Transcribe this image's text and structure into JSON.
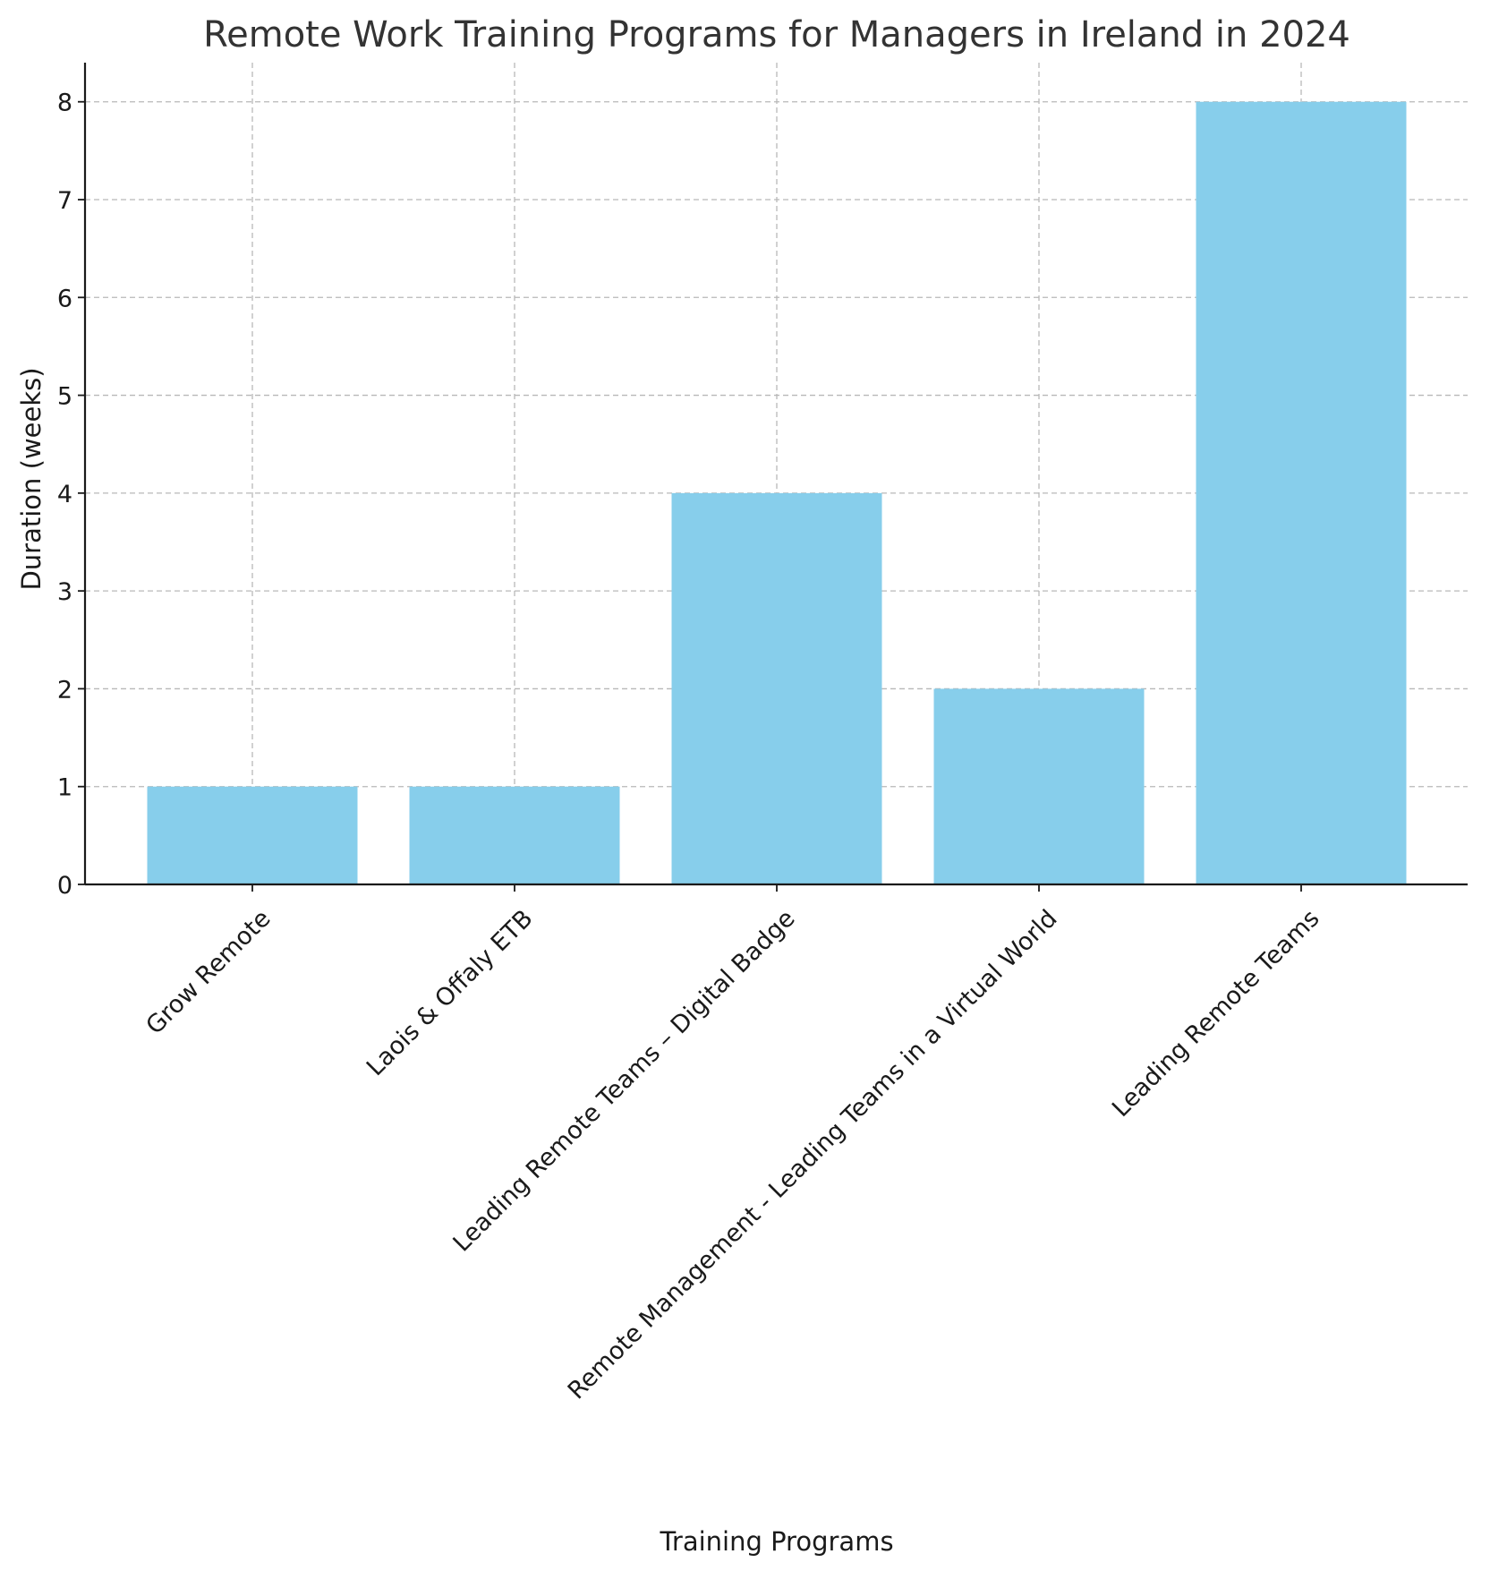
{
  "chart_data": {
    "type": "bar",
    "title": "Remote Work Training Programs for Managers in Ireland in 2024",
    "xlabel": "Training Programs",
    "ylabel": "Duration (weeks)",
    "categories": [
      "Grow Remote",
      "Laois & Offaly ETB",
      "Leading Remote Teams – Digital Badge",
      "Remote Management - Leading Teams in a Virtual World",
      "Leading Remote Teams"
    ],
    "values": [
      1,
      1,
      4,
      2,
      8
    ],
    "ylim": [
      0,
      8.4
    ],
    "yticks": [
      0,
      1,
      2,
      3,
      4,
      5,
      6,
      7,
      8
    ],
    "grid": true,
    "bar_color": "#87ceeb"
  }
}
